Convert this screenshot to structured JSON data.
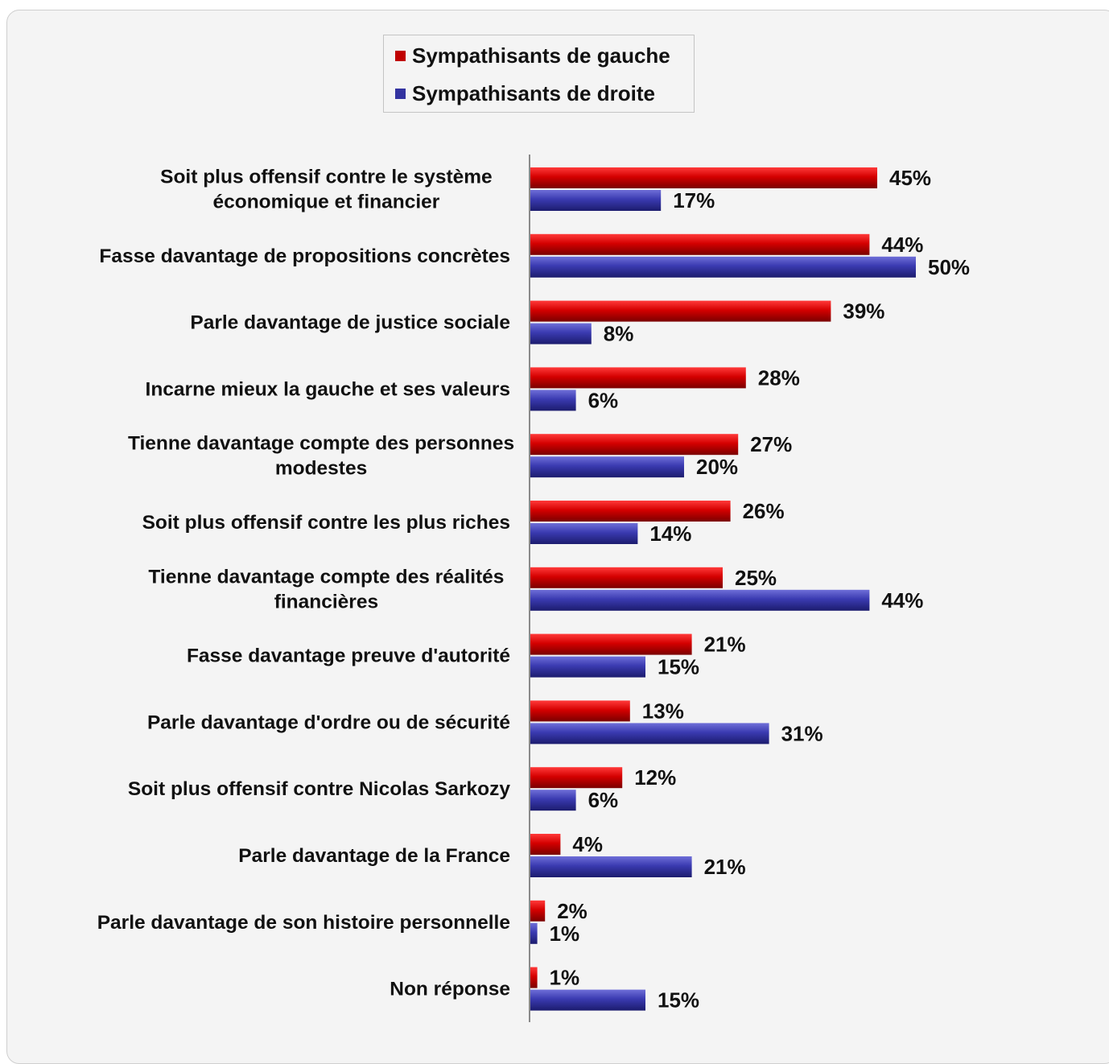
{
  "chart_data": {
    "type": "bar",
    "orientation": "horizontal",
    "categories": [
      [
        "Soit plus offensif contre le système",
        "économique et financier"
      ],
      [
        "Fasse davantage de propositions concrètes"
      ],
      [
        "Parle davantage de justice sociale"
      ],
      [
        "Incarne mieux la gauche et ses valeurs"
      ],
      [
        "Tienne davantage compte des personnes",
        "modestes"
      ],
      [
        "Soit plus offensif contre les plus riches"
      ],
      [
        "Tienne davantage compte des réalités",
        "financières"
      ],
      [
        "Fasse davantage preuve d'autorité"
      ],
      [
        "Parle davantage d'ordre ou de sécurité"
      ],
      [
        "Soit plus offensif contre Nicolas Sarkozy"
      ],
      [
        "Parle davantage de la France"
      ],
      [
        "Parle davantage de son histoire personnelle"
      ],
      [
        "Non réponse"
      ]
    ],
    "series": [
      {
        "name": "Sympathisants de gauche",
        "color": "#c00000",
        "values": [
          45,
          44,
          39,
          28,
          27,
          26,
          25,
          21,
          13,
          12,
          4,
          2,
          1
        ]
      },
      {
        "name": "Sympathisants de droite",
        "color": "#3333a0",
        "values": [
          17,
          50,
          8,
          6,
          20,
          14,
          44,
          15,
          31,
          6,
          21,
          1,
          15
        ]
      }
    ],
    "value_suffix": "%",
    "xlim": [
      0,
      50
    ],
    "grid": false,
    "legend": "top-center"
  }
}
